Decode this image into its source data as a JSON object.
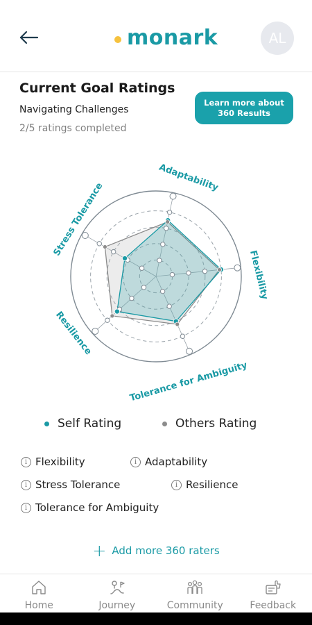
{
  "header": {
    "app_name": "monark",
    "avatar_initials": "AL"
  },
  "page": {
    "title": "Current Goal Ratings",
    "goal_name": "Navigating Challenges",
    "progress_text": "2/5 ratings completed",
    "learn_button_line1": "Learn more about",
    "learn_button_line2": "360 Results"
  },
  "chart_data": {
    "type": "radar",
    "axes": [
      "Adaptability",
      "Flexibility",
      "Tolerance for Ambiguity",
      "Resilience",
      "Stress Tolerance"
    ],
    "scale_max": 5,
    "series": [
      {
        "name": "Self Rating",
        "color": "#1a9aa5",
        "values": [
          3.5,
          4.0,
          3.0,
          3.2,
          2.2
        ]
      },
      {
        "name": "Others Rating",
        "color": "#8c8c8c",
        "values": [
          3.4,
          3.9,
          3.2,
          3.6,
          3.6
        ]
      }
    ],
    "grid": true
  },
  "legend": {
    "self_label": "Self Rating",
    "others_label": "Others Rating",
    "self_color": "#1a9aa5",
    "others_color": "#8c8c8c"
  },
  "info_items": [
    "Flexibility",
    "Adaptability",
    "Stress Tolerance",
    "Resilience",
    "Tolerance for Ambiguity"
  ],
  "add_raters_label": "Add more 360 raters",
  "nav": {
    "home": "Home",
    "journey": "Journey",
    "community": "Community",
    "feedback": "Feedback"
  },
  "colors": {
    "accent": "#1a9aa5",
    "logo_dot": "#f6c23e"
  }
}
